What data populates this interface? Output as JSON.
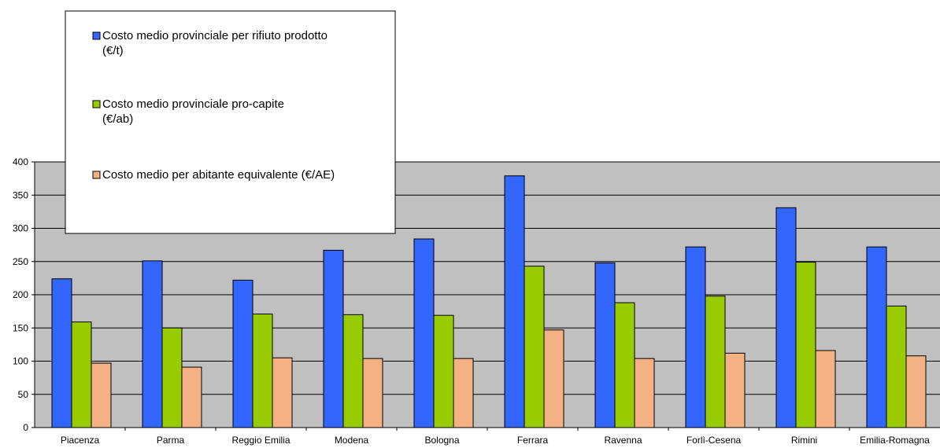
{
  "chart_data": {
    "type": "bar",
    "title": "",
    "xlabel": "",
    "ylabel": "",
    "ylim": [
      0,
      400
    ],
    "yticks": [
      0,
      50,
      100,
      150,
      200,
      250,
      300,
      350,
      400
    ],
    "grid": true,
    "legend_position": "top-left",
    "plot_background": "#c0c0c0",
    "categories": [
      "Piacenza",
      "Parma",
      "Reggio Emilia",
      "Modena",
      "Bologna",
      "Ferrara",
      "Ravenna",
      "Forlì-Cesena",
      "Rimini",
      "Emilia-Romagna"
    ],
    "series": [
      {
        "name": "Costo medio provinciale per rifiuto prodotto (€/t)",
        "legend_lines": [
          "Costo medio provinciale per rifiuto prodotto",
          "(€/t)"
        ],
        "color": "#3366ff",
        "values": [
          224,
          251,
          222,
          267,
          284,
          379,
          248,
          272,
          331,
          272
        ]
      },
      {
        "name": "Costo medio provinciale pro-capite (€/ab)",
        "legend_lines": [
          "Costo medio provinciale pro-capite",
          "(€/ab)"
        ],
        "color": "#99cc00",
        "values": [
          159,
          150,
          171,
          170,
          169,
          243,
          188,
          198,
          249,
          183
        ]
      },
      {
        "name": "Costo medio per abitante equivalente (€/AE)",
        "legend_lines": [
          "Costo medio per abitante equivalente (€/AE)"
        ],
        "color": "#f4b183",
        "values": [
          97,
          91,
          105,
          104,
          104,
          147,
          104,
          112,
          116,
          108
        ]
      }
    ]
  }
}
